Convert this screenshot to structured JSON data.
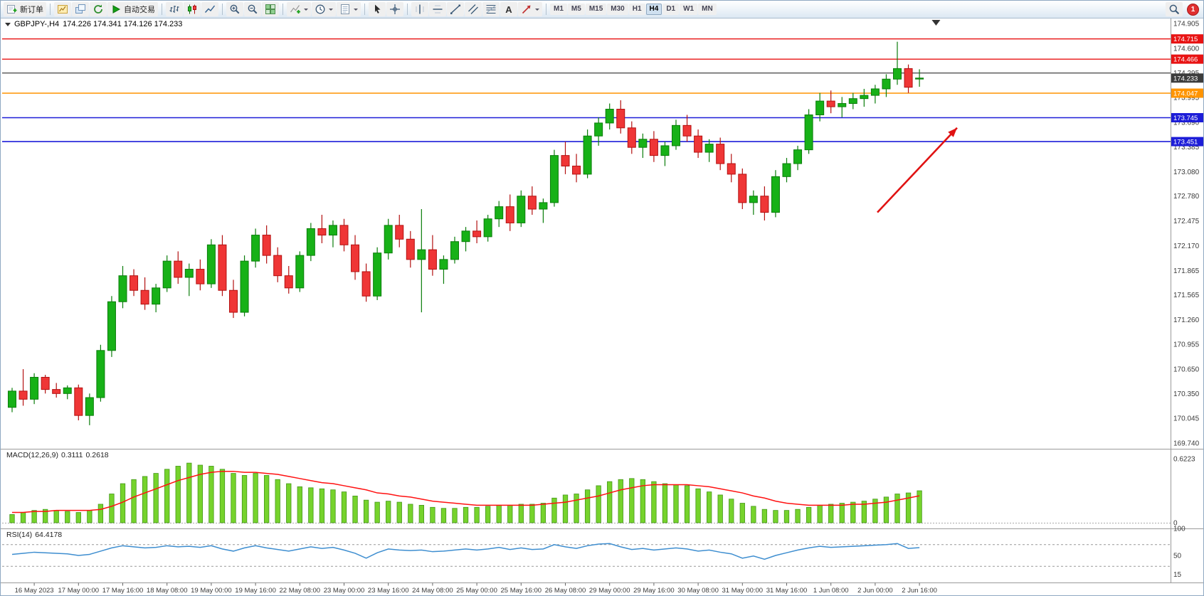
{
  "toolbar": {
    "active_timeframe": "H4",
    "notification_badge": "1",
    "items": [
      {
        "t": "btn",
        "name": "new-order-button",
        "icon": "new-order",
        "label": "新订单"
      },
      {
        "t": "sep"
      },
      {
        "t": "ico",
        "name": "chart-window-button",
        "icon": "chart-window"
      },
      {
        "t": "ico",
        "name": "profiles-button",
        "icon": "layers"
      },
      {
        "t": "ico",
        "name": "refresh-button",
        "icon": "refresh"
      },
      {
        "t": "btn",
        "name": "auto-trading-button",
        "icon": "play",
        "label": "自动交易"
      },
      {
        "t": "sep"
      },
      {
        "t": "ico",
        "name": "bar-chart-button",
        "icon": "bars"
      },
      {
        "t": "ico",
        "name": "candlestick-chart-button",
        "icon": "candles"
      },
      {
        "t": "ico",
        "name": "line-chart-button",
        "icon": "line"
      },
      {
        "t": "sep"
      },
      {
        "t": "ico",
        "name": "zoom-in-button",
        "icon": "zoom-in"
      },
      {
        "t": "ico",
        "name": "zoom-out-button",
        "icon": "zoom-out"
      },
      {
        "t": "ico",
        "name": "tile-windows-button",
        "icon": "grid"
      },
      {
        "t": "sep"
      },
      {
        "t": "ico",
        "name": "indicators-button",
        "icon": "indicator",
        "dd": true
      },
      {
        "t": "ico",
        "name": "periods-button",
        "icon": "clock",
        "dd": true
      },
      {
        "t": "ico",
        "name": "templates-button",
        "icon": "template",
        "dd": true
      },
      {
        "t": "sep"
      },
      {
        "t": "ico",
        "name": "cursor-button",
        "icon": "cursor"
      },
      {
        "t": "ico",
        "name": "crosshair-button",
        "icon": "crosshair"
      },
      {
        "t": "sep"
      },
      {
        "t": "ico",
        "name": "vertical-line-button",
        "icon": "vline"
      },
      {
        "t": "ico",
        "name": "horizontal-line-button",
        "icon": "hline"
      },
      {
        "t": "ico",
        "name": "trendline-button",
        "icon": "trend"
      },
      {
        "t": "ico",
        "name": "equidistant-channel-button",
        "icon": "channel"
      },
      {
        "t": "ico",
        "name": "fibonacci-button",
        "icon": "fibo"
      },
      {
        "t": "ico",
        "name": "text-button",
        "icon": "text"
      },
      {
        "t": "ico",
        "name": "arrows-button",
        "icon": "arrow",
        "dd": true
      },
      {
        "t": "sep"
      },
      {
        "t": "tf",
        "name": "timeframe-m1-button",
        "label": "M1"
      },
      {
        "t": "tf",
        "name": "timeframe-m5-button",
        "label": "M5"
      },
      {
        "t": "tf",
        "name": "timeframe-m15-button",
        "label": "M15"
      },
      {
        "t": "tf",
        "name": "timeframe-m30-button",
        "label": "M30"
      },
      {
        "t": "tf",
        "name": "timeframe-h1-button",
        "label": "H1"
      },
      {
        "t": "tf",
        "name": "timeframe-h4-button",
        "label": "H4"
      },
      {
        "t": "tf",
        "name": "timeframe-d1-button",
        "label": "D1"
      },
      {
        "t": "tf",
        "name": "timeframe-w1-button",
        "label": "W1"
      },
      {
        "t": "tf",
        "name": "timeframe-mn-button",
        "label": "MN"
      }
    ]
  },
  "chart": {
    "symbol_title": "GBPJPY-,H4",
    "ohlc_text": "174.226 174.341 174.126 174.233"
  },
  "indicators": {
    "macd": {
      "label": "MACD(12,26,9)",
      "value_main": "0.3111",
      "value_signal": "0.2618"
    },
    "rsi": {
      "label": "RSI(14)",
      "value": "64.4178"
    }
  },
  "chart_data": {
    "type": "candlestick",
    "symbol": "GBPJPY-",
    "timeframe": "H4",
    "colors": {
      "up": "#17b117",
      "up_border": "#0b7d0b",
      "down": "#ef3636",
      "down_border": "#b31111"
    },
    "price_axis_labels": [
      "174.905",
      "174.600",
      "174.295",
      "173.995",
      "173.690",
      "173.385",
      "173.080",
      "172.780",
      "172.475",
      "172.170",
      "171.865",
      "171.565",
      "171.260",
      "170.955",
      "170.650",
      "170.350",
      "170.045",
      "169.740"
    ],
    "time_axis_labels": [
      "16 May 2023",
      "17 May 00:00",
      "17 May 16:00",
      "18 May 08:00",
      "19 May 00:00",
      "19 May 16:00",
      "22 May 08:00",
      "23 May 00:00",
      "23 May 16:00",
      "24 May 08:00",
      "25 May 00:00",
      "25 May 16:00",
      "26 May 08:00",
      "29 May 00:00",
      "29 May 16:00",
      "30 May 08:00",
      "31 May 00:00",
      "31 May 16:00",
      "1 Jun 08:00",
      "2 Jun 00:00",
      "2 Jun 16:00"
    ],
    "label_start_bar": 2,
    "label_step_bars": 4,
    "candles": [
      [
        170.18,
        170.42,
        170.12,
        170.38
      ],
      [
        170.38,
        170.65,
        170.2,
        170.28
      ],
      [
        170.28,
        170.6,
        170.22,
        170.55
      ],
      [
        170.55,
        170.58,
        170.35,
        170.4
      ],
      [
        170.4,
        170.48,
        170.3,
        170.35
      ],
      [
        170.35,
        170.45,
        170.28,
        170.42
      ],
      [
        170.42,
        170.46,
        170.02,
        170.08
      ],
      [
        170.08,
        170.35,
        169.96,
        170.3
      ],
      [
        170.3,
        170.95,
        170.25,
        170.88
      ],
      [
        170.88,
        171.55,
        170.8,
        171.48
      ],
      [
        171.48,
        171.92,
        171.4,
        171.8
      ],
      [
        171.8,
        171.88,
        171.55,
        171.62
      ],
      [
        171.62,
        171.78,
        171.38,
        171.45
      ],
      [
        171.45,
        171.7,
        171.35,
        171.65
      ],
      [
        171.65,
        172.05,
        171.6,
        171.98
      ],
      [
        171.98,
        172.1,
        171.7,
        171.78
      ],
      [
        171.78,
        171.95,
        171.55,
        171.88
      ],
      [
        171.88,
        172.0,
        171.62,
        171.7
      ],
      [
        171.7,
        172.25,
        171.65,
        172.18
      ],
      [
        172.18,
        172.3,
        171.55,
        171.62
      ],
      [
        171.62,
        171.75,
        171.28,
        171.35
      ],
      [
        171.35,
        172.05,
        171.3,
        171.98
      ],
      [
        171.98,
        172.38,
        171.9,
        172.3
      ],
      [
        172.3,
        172.42,
        171.95,
        172.05
      ],
      [
        172.05,
        172.15,
        171.72,
        171.8
      ],
      [
        171.8,
        171.92,
        171.58,
        171.65
      ],
      [
        171.65,
        172.1,
        171.6,
        172.05
      ],
      [
        172.05,
        172.45,
        171.98,
        172.38
      ],
      [
        172.38,
        172.55,
        172.2,
        172.3
      ],
      [
        172.3,
        172.48,
        172.15,
        172.42
      ],
      [
        172.42,
        172.5,
        172.1,
        172.18
      ],
      [
        172.18,
        172.3,
        171.75,
        171.85
      ],
      [
        171.85,
        171.95,
        171.48,
        171.55
      ],
      [
        171.55,
        172.15,
        171.5,
        172.08
      ],
      [
        172.08,
        172.5,
        172.0,
        172.42
      ],
      [
        172.42,
        172.55,
        172.15,
        172.25
      ],
      [
        172.25,
        172.35,
        171.9,
        172.0
      ],
      [
        172.0,
        172.62,
        171.35,
        172.12
      ],
      [
        172.12,
        172.3,
        171.8,
        171.88
      ],
      [
        171.88,
        172.05,
        171.7,
        172.0
      ],
      [
        172.0,
        172.28,
        171.95,
        172.22
      ],
      [
        172.22,
        172.4,
        172.1,
        172.35
      ],
      [
        172.35,
        172.48,
        172.2,
        172.28
      ],
      [
        172.28,
        172.55,
        172.22,
        172.5
      ],
      [
        172.5,
        172.72,
        172.4,
        172.65
      ],
      [
        172.65,
        172.8,
        172.35,
        172.45
      ],
      [
        172.45,
        172.85,
        172.4,
        172.78
      ],
      [
        172.78,
        172.9,
        172.55,
        172.62
      ],
      [
        172.62,
        172.75,
        172.45,
        172.7
      ],
      [
        172.7,
        173.35,
        172.65,
        173.28
      ],
      [
        173.28,
        173.45,
        173.05,
        173.15
      ],
      [
        173.15,
        173.3,
        172.95,
        173.05
      ],
      [
        173.05,
        173.6,
        173.0,
        173.52
      ],
      [
        173.52,
        173.75,
        173.4,
        173.68
      ],
      [
        173.68,
        173.92,
        173.6,
        173.85
      ],
      [
        173.85,
        173.96,
        173.55,
        173.62
      ],
      [
        173.62,
        173.7,
        173.3,
        173.38
      ],
      [
        173.38,
        173.55,
        173.25,
        173.48
      ],
      [
        173.48,
        173.58,
        173.2,
        173.28
      ],
      [
        173.28,
        173.45,
        173.15,
        173.4
      ],
      [
        173.4,
        173.72,
        173.35,
        173.65
      ],
      [
        173.65,
        173.78,
        173.45,
        173.52
      ],
      [
        173.52,
        173.6,
        173.25,
        173.32
      ],
      [
        173.32,
        173.48,
        173.2,
        173.42
      ],
      [
        173.42,
        173.5,
        173.1,
        173.18
      ],
      [
        173.18,
        173.3,
        172.95,
        173.05
      ],
      [
        173.05,
        173.12,
        172.62,
        172.7
      ],
      [
        172.7,
        172.85,
        172.55,
        172.78
      ],
      [
        172.78,
        172.9,
        172.48,
        172.58
      ],
      [
        172.58,
        173.1,
        172.52,
        173.02
      ],
      [
        173.02,
        173.25,
        172.95,
        173.18
      ],
      [
        173.18,
        173.4,
        173.1,
        173.35
      ],
      [
        173.35,
        173.85,
        173.3,
        173.78
      ],
      [
        173.78,
        174.05,
        173.7,
        173.95
      ],
      [
        173.95,
        174.08,
        173.8,
        173.88
      ],
      [
        173.88,
        174.0,
        173.75,
        173.92
      ],
      [
        173.92,
        174.05,
        173.85,
        173.98
      ],
      [
        173.98,
        174.1,
        173.88,
        174.02
      ],
      [
        174.02,
        174.15,
        173.92,
        174.1
      ],
      [
        174.1,
        174.28,
        174.0,
        174.22
      ],
      [
        174.22,
        174.68,
        174.15,
        174.35
      ],
      [
        174.35,
        174.4,
        174.05,
        174.12
      ],
      [
        174.226,
        174.341,
        174.126,
        174.233
      ]
    ],
    "levels": [
      {
        "label": "174.715",
        "value": 174.715,
        "color": "#e81313",
        "width": 1.4,
        "box": true
      },
      {
        "label": "174.466",
        "value": 174.466,
        "color": "#e81313",
        "width": 1.4,
        "box": true
      },
      {
        "label": "174.295",
        "value": 174.295,
        "color": "#2f2f2f",
        "width": 1.2,
        "box": false
      },
      {
        "label": "174.047",
        "value": 174.047,
        "color": "#ff9400",
        "width": 1.6,
        "box": true
      },
      {
        "label": "173.745",
        "value": 173.745,
        "color": "#1d1dd8",
        "width": 1.6,
        "box": true
      },
      {
        "label": "173.451",
        "value": 173.451,
        "color": "#1d1dd8",
        "width": 1.6,
        "box": true
      }
    ],
    "current_price": {
      "label": "174.233",
      "value": 174.233,
      "box_color": "#3c3c3c"
    },
    "annotations": {
      "trend_arrow": {
        "color": "#e01212",
        "from_bar": 78.2,
        "from_price": 172.58,
        "to_bar": 85.4,
        "to_price": 173.62
      },
      "shift_marker_bar": 83.5
    },
    "macd": {
      "name": "MACD(12,26,9)",
      "histogram_color": "#76d32c",
      "histogram_border": "#44971a",
      "signal_color": "#ff1111",
      "axis": [
        {
          "label": "0.6223",
          "value": 0.6223
        },
        {
          "label": "0",
          "value": 0
        }
      ],
      "histogram": [
        0.08,
        0.1,
        0.12,
        0.13,
        0.12,
        0.11,
        0.1,
        0.12,
        0.18,
        0.28,
        0.38,
        0.42,
        0.45,
        0.48,
        0.52,
        0.55,
        0.58,
        0.56,
        0.55,
        0.52,
        0.48,
        0.46,
        0.48,
        0.46,
        0.42,
        0.38,
        0.35,
        0.34,
        0.33,
        0.32,
        0.3,
        0.26,
        0.22,
        0.2,
        0.21,
        0.2,
        0.18,
        0.17,
        0.15,
        0.14,
        0.14,
        0.15,
        0.15,
        0.16,
        0.17,
        0.17,
        0.18,
        0.18,
        0.19,
        0.24,
        0.27,
        0.28,
        0.32,
        0.36,
        0.4,
        0.42,
        0.43,
        0.42,
        0.4,
        0.38,
        0.37,
        0.36,
        0.33,
        0.3,
        0.27,
        0.23,
        0.19,
        0.16,
        0.13,
        0.12,
        0.12,
        0.13,
        0.15,
        0.17,
        0.18,
        0.19,
        0.2,
        0.21,
        0.23,
        0.25,
        0.28,
        0.29,
        0.3111
      ],
      "signal": [
        0.1,
        0.1,
        0.11,
        0.11,
        0.12,
        0.12,
        0.12,
        0.12,
        0.13,
        0.16,
        0.2,
        0.25,
        0.29,
        0.33,
        0.37,
        0.41,
        0.44,
        0.47,
        0.49,
        0.5,
        0.5,
        0.49,
        0.49,
        0.48,
        0.47,
        0.45,
        0.43,
        0.41,
        0.39,
        0.38,
        0.36,
        0.34,
        0.32,
        0.29,
        0.28,
        0.26,
        0.25,
        0.23,
        0.21,
        0.2,
        0.19,
        0.18,
        0.17,
        0.17,
        0.17,
        0.17,
        0.17,
        0.17,
        0.18,
        0.19,
        0.2,
        0.22,
        0.24,
        0.26,
        0.29,
        0.32,
        0.34,
        0.36,
        0.37,
        0.37,
        0.37,
        0.37,
        0.36,
        0.35,
        0.33,
        0.31,
        0.29,
        0.26,
        0.24,
        0.21,
        0.19,
        0.18,
        0.17,
        0.17,
        0.17,
        0.17,
        0.18,
        0.18,
        0.19,
        0.2,
        0.22,
        0.24,
        0.2618
      ]
    },
    "rsi": {
      "name": "RSI(14)",
      "line_color": "#3e8ed0",
      "axis": [
        {
          "label": "100",
          "value": 100
        },
        {
          "label": "50",
          "value": 50
        },
        {
          "label": "15",
          "value": 15
        }
      ],
      "level_lines": [
        70,
        30
      ],
      "values": [
        52,
        54,
        56,
        55,
        54,
        53,
        50,
        52,
        58,
        64,
        68,
        66,
        64,
        65,
        68,
        66,
        67,
        65,
        68,
        62,
        58,
        64,
        68,
        64,
        61,
        58,
        62,
        66,
        63,
        65,
        60,
        54,
        45,
        55,
        62,
        60,
        59,
        60,
        57,
        58,
        60,
        62,
        60,
        62,
        65,
        61,
        64,
        61,
        62,
        70,
        66,
        63,
        68,
        71,
        72,
        66,
        61,
        63,
        60,
        62,
        64,
        62,
        58,
        60,
        56,
        53,
        45,
        49,
        43,
        50,
        55,
        60,
        64,
        67,
        65,
        66,
        67,
        68,
        69,
        70,
        72,
        63,
        64.42
      ]
    }
  }
}
